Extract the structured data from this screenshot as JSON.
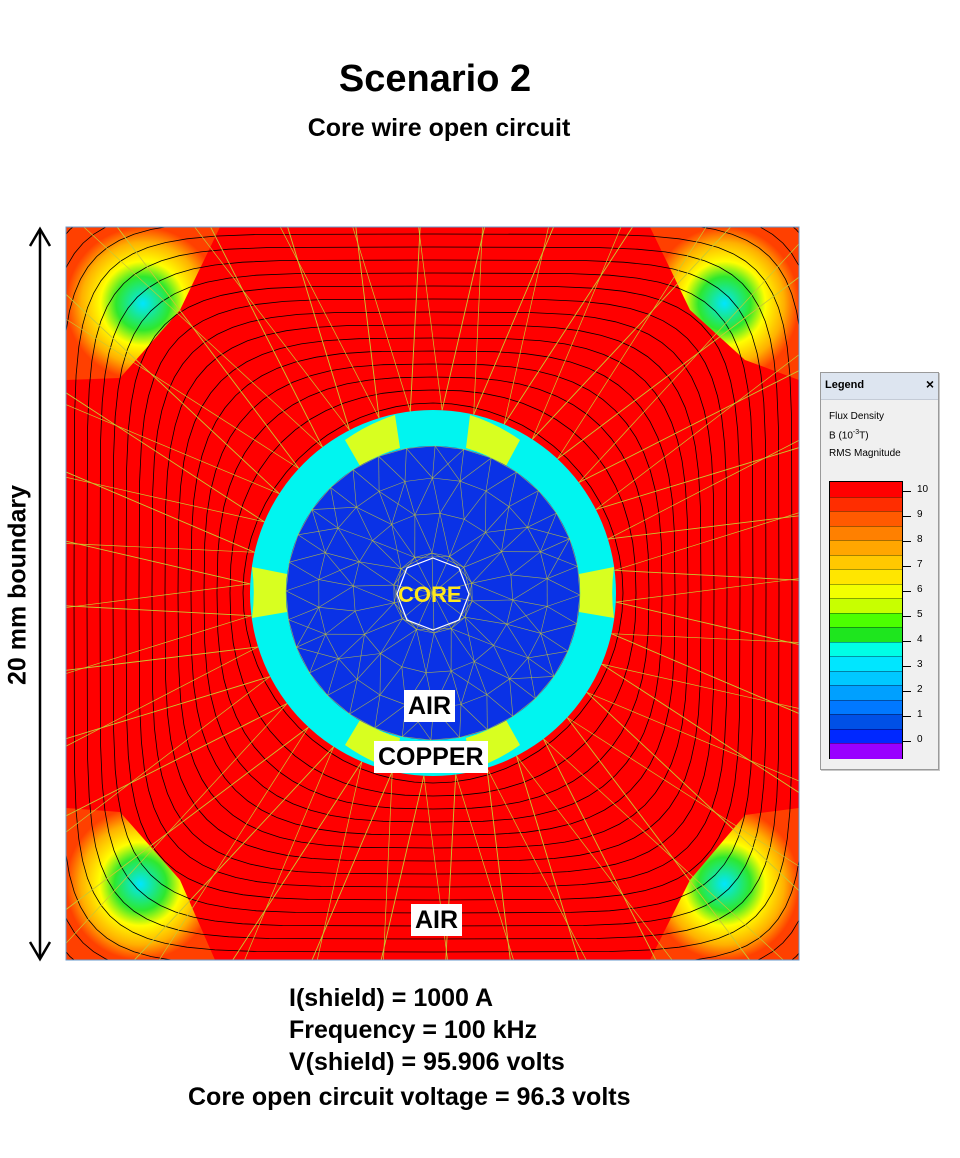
{
  "header": {
    "title": "Scenario 2",
    "subtitle": "Core wire open circuit"
  },
  "side_label": "20 mm boundary",
  "regions": {
    "core": "CORE",
    "air_inner": "AIR",
    "copper": "COPPER",
    "air_outer": "AIR"
  },
  "results": {
    "line1": "I(shield) = 1000 A",
    "line2": "Frequency = 100 kHz",
    "line3": "V(shield) = 95.906 volts",
    "line4": "Core open circuit voltage = 96.3 volts"
  },
  "legend": {
    "title": "Legend",
    "close": "×",
    "quantity": "Flux Density",
    "unit_prefix": "B (10",
    "unit_exp": "-3",
    "unit_suffix": "T)",
    "mode": "RMS Magnitude",
    "ticks": [
      "10",
      "9",
      "8",
      "7",
      "6",
      "5",
      "4",
      "3",
      "2",
      "1",
      "0"
    ],
    "colors": [
      "#ff0000",
      "#ff2d00",
      "#ff5a00",
      "#ff8000",
      "#ffa600",
      "#ffc800",
      "#ffe600",
      "#f2ff00",
      "#c8ff00",
      "#4cff00",
      "#1ee61e",
      "#00ffe6",
      "#00e6ff",
      "#00c8ff",
      "#00a0ff",
      "#0078ff",
      "#0050e6",
      "#0028ff",
      "#9900ff"
    ]
  },
  "field_colors": {
    "outer": "#ff0000",
    "corner": "#ffd000",
    "copper": "#00ffff",
    "inner_air": "#0a32e6",
    "mesh": "#c8c832",
    "contour": "#000000",
    "core_outline": "#ffffff"
  }
}
